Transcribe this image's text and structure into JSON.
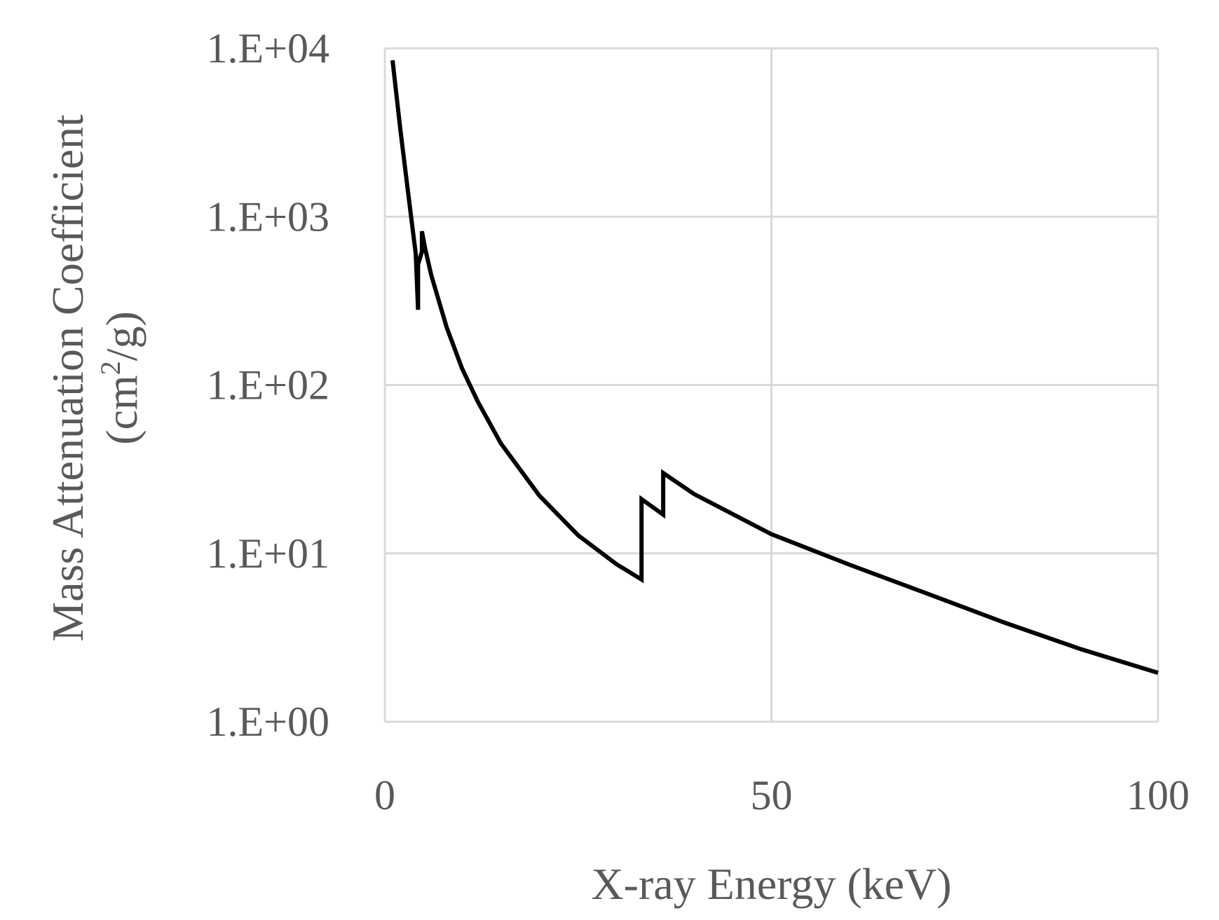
{
  "chart_data": {
    "type": "line",
    "xlabel": "X-ray Energy (keV)",
    "ylabel_line1": "Mass Attenuation Coefficient",
    "ylabel_line2_main": "(cm",
    "ylabel_line2_sup": "2",
    "ylabel_line2_end": "/g)",
    "x_scale": "linear",
    "y_scale": "log",
    "xlim": [
      0,
      100
    ],
    "ylim": [
      1,
      10000
    ],
    "x_ticks": [
      0,
      50,
      100
    ],
    "x_tick_labels": [
      "0",
      "50",
      "100"
    ],
    "y_ticks": [
      1,
      10,
      100,
      1000,
      10000
    ],
    "y_tick_labels": [
      "1.E+00",
      "1.E+01",
      "1.E+02",
      "1.E+03",
      "1.E+04"
    ],
    "grid": true,
    "series": [
      {
        "color": "#000000",
        "x": [
          1,
          2,
          3,
          4,
          4.3,
          4.3,
          4.8,
          4.8,
          5.2,
          6,
          8,
          10,
          12,
          15,
          20,
          25,
          30,
          33.2,
          33.2,
          36,
          36,
          40,
          50,
          60,
          70,
          80,
          90,
          100
        ],
        "y": [
          8500,
          3300,
          1400,
          600,
          280,
          520,
          620,
          820,
          650,
          450,
          220,
          125,
          80,
          45,
          22,
          12.8,
          8.6,
          7.0,
          21,
          17,
          30,
          22.5,
          13.0,
          8.6,
          5.8,
          3.9,
          2.7,
          1.95
        ]
      }
    ]
  }
}
